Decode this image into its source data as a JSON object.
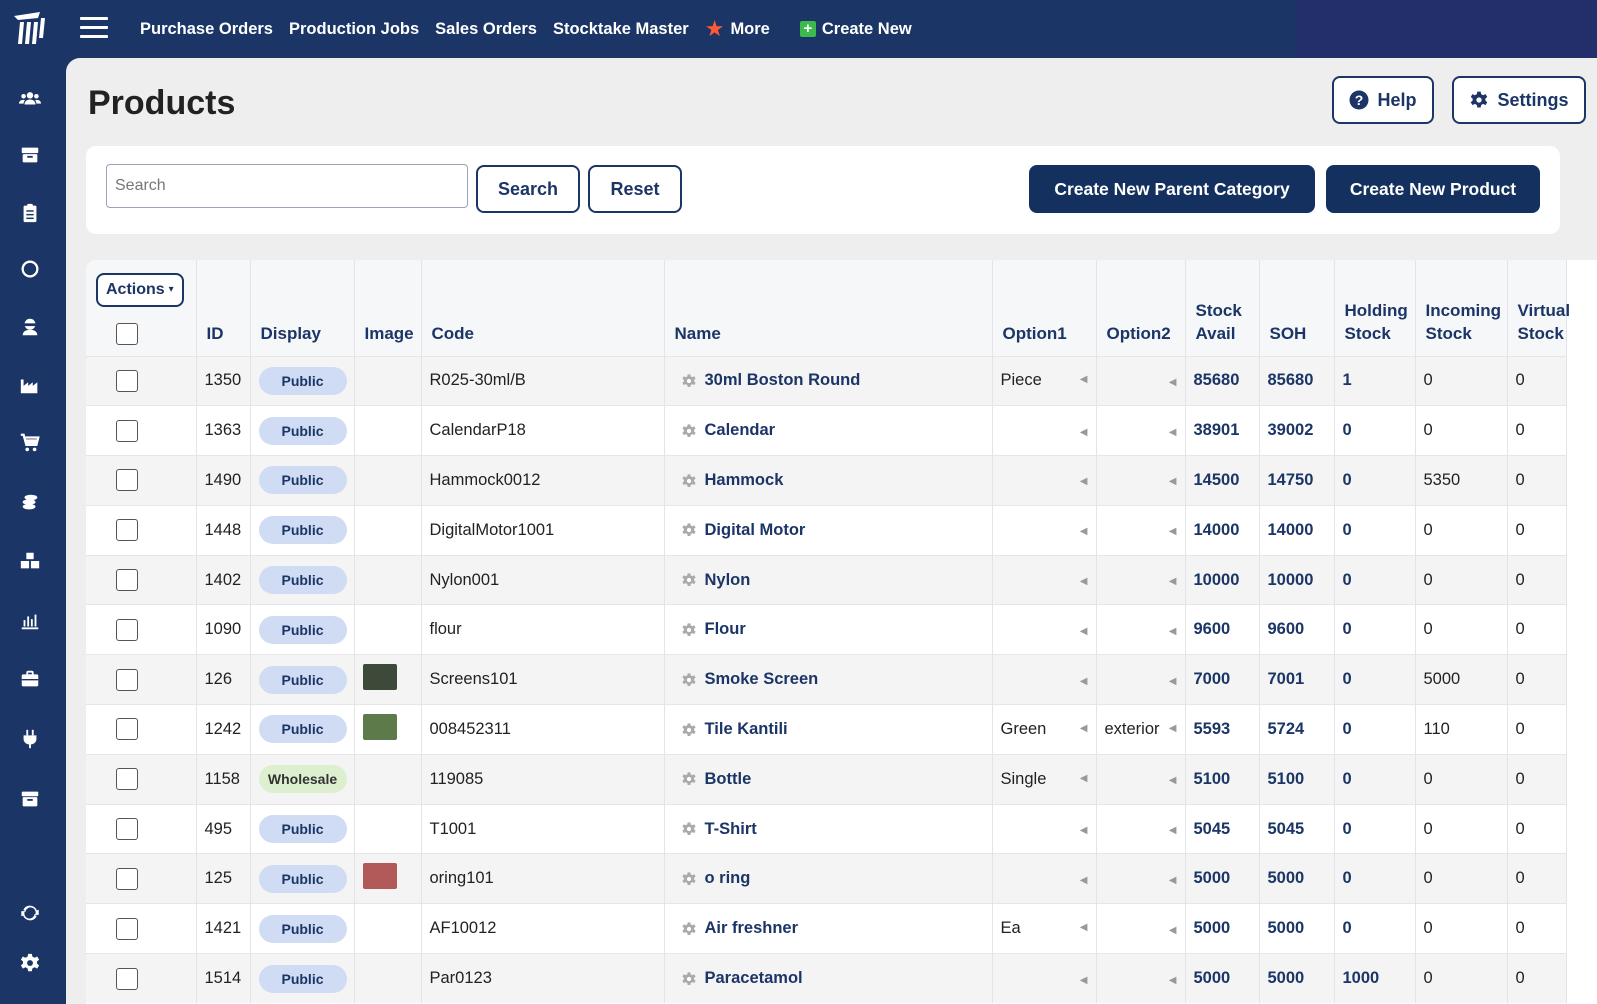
{
  "topnav": {
    "items": [
      "Purchase Orders",
      "Production Jobs",
      "Sales Orders",
      "Stocktake Master"
    ],
    "more_label": "More",
    "create_label": "Create New"
  },
  "page": {
    "title": "Products"
  },
  "header_buttons": {
    "help": "Help",
    "settings": "Settings"
  },
  "search": {
    "placeholder": "Search",
    "value": "",
    "search_button": "Search",
    "reset_button": "Reset",
    "create_parent_category": "Create New Parent Category",
    "create_product": "Create New Product"
  },
  "table": {
    "actions_label": "Actions",
    "headers": {
      "id": "ID",
      "display": "Display",
      "image": "Image",
      "code": "Code",
      "name": "Name",
      "option1": "Option1",
      "option2": "Option2",
      "stock_avail": [
        "Stock",
        "Avail"
      ],
      "soh": "SOH",
      "holding": [
        "Holding",
        "Stock"
      ],
      "incoming": [
        "Incoming",
        "Stock"
      ],
      "virtual": [
        "Virtual",
        "Stock"
      ]
    },
    "rows": [
      {
        "id": "1350",
        "display": "Public",
        "image": "",
        "code": "R025-30ml/B",
        "name": "30ml Boston Round",
        "option1": "Piece",
        "option2": "",
        "stock_avail": "85680",
        "soh": "85680",
        "holding": "1",
        "incoming": "0",
        "virtual": "0"
      },
      {
        "id": "1363",
        "display": "Public",
        "image": "",
        "code": "CalendarP18",
        "name": "Calendar",
        "option1": "",
        "option2": "",
        "stock_avail": "38901",
        "soh": "39002",
        "holding": "0",
        "incoming": "0",
        "virtual": "0"
      },
      {
        "id": "1490",
        "display": "Public",
        "image": "",
        "code": "Hammock0012",
        "name": "Hammock",
        "option1": "",
        "option2": "",
        "stock_avail": "14500",
        "soh": "14750",
        "holding": "0",
        "incoming": "5350",
        "virtual": "0"
      },
      {
        "id": "1448",
        "display": "Public",
        "image": "",
        "code": "DigitalMotor1001",
        "name": "Digital Motor",
        "option1": "",
        "option2": "",
        "stock_avail": "14000",
        "soh": "14000",
        "holding": "0",
        "incoming": "0",
        "virtual": "0"
      },
      {
        "id": "1402",
        "display": "Public",
        "image": "",
        "code": "Nylon001",
        "name": "Nylon",
        "option1": "",
        "option2": "",
        "stock_avail": "10000",
        "soh": "10000",
        "holding": "0",
        "incoming": "0",
        "virtual": "0"
      },
      {
        "id": "1090",
        "display": "Public",
        "image": "",
        "code": "flour",
        "name": "Flour",
        "option1": "",
        "option2": "",
        "stock_avail": "9600",
        "soh": "9600",
        "holding": "0",
        "incoming": "0",
        "virtual": "0"
      },
      {
        "id": "126",
        "display": "Public",
        "image": "dark-thumb",
        "code": "Screens101",
        "name": "Smoke Screen",
        "option1": "",
        "option2": "",
        "stock_avail": "7000",
        "soh": "7001",
        "holding": "0",
        "incoming": "5000",
        "virtual": "0"
      },
      {
        "id": "1242",
        "display": "Public",
        "image": "green-thumb",
        "code": "008452311",
        "name": "Tile Kantili",
        "option1": "Green",
        "option2": "exterior",
        "stock_avail": "5593",
        "soh": "5724",
        "holding": "0",
        "incoming": "110",
        "virtual": "0"
      },
      {
        "id": "1158",
        "display": "Wholesale",
        "image": "",
        "code": "119085",
        "name": "Bottle",
        "option1": "Single",
        "option2": "",
        "stock_avail": "5100",
        "soh": "5100",
        "holding": "0",
        "incoming": "0",
        "virtual": "0"
      },
      {
        "id": "495",
        "display": "Public",
        "image": "",
        "code": "T1001",
        "name": "T-Shirt",
        "option1": "",
        "option2": "",
        "stock_avail": "5045",
        "soh": "5045",
        "holding": "0",
        "incoming": "0",
        "virtual": "0"
      },
      {
        "id": "125",
        "display": "Public",
        "image": "red-thumb",
        "code": "oring101",
        "name": "o ring",
        "option1": "",
        "option2": "",
        "stock_avail": "5000",
        "soh": "5000",
        "holding": "0",
        "incoming": "0",
        "virtual": "0"
      },
      {
        "id": "1421",
        "display": "Public",
        "image": "",
        "code": "AF10012",
        "name": "Air freshner",
        "option1": "Ea",
        "option2": "",
        "stock_avail": "5000",
        "soh": "5000",
        "holding": "0",
        "incoming": "0",
        "virtual": "0"
      },
      {
        "id": "1514",
        "display": "Public",
        "image": "",
        "code": "Par0123",
        "name": "Paracetamol",
        "option1": "",
        "option2": "",
        "stock_avail": "5000",
        "soh": "5000",
        "holding": "1000",
        "incoming": "0",
        "virtual": "0"
      }
    ]
  },
  "sidebar_icons": [
    "users-icon",
    "box-icon",
    "clipboard-icon",
    "circle-icon",
    "ninja-icon",
    "factory-icon",
    "cart-icon",
    "coins-icon",
    "boxes-icon",
    "bar-chart-icon",
    "briefcase-icon",
    "plug-icon",
    "archive-icon",
    "sync-icon",
    "gear-icon"
  ],
  "colors": {
    "navy": "#1b3566",
    "accent_button": "#14305f",
    "public_badge": "#cfdcf3",
    "wholesale_badge": "#dcefcf",
    "star": "#ff5a36",
    "create_green": "#3cba4b"
  }
}
